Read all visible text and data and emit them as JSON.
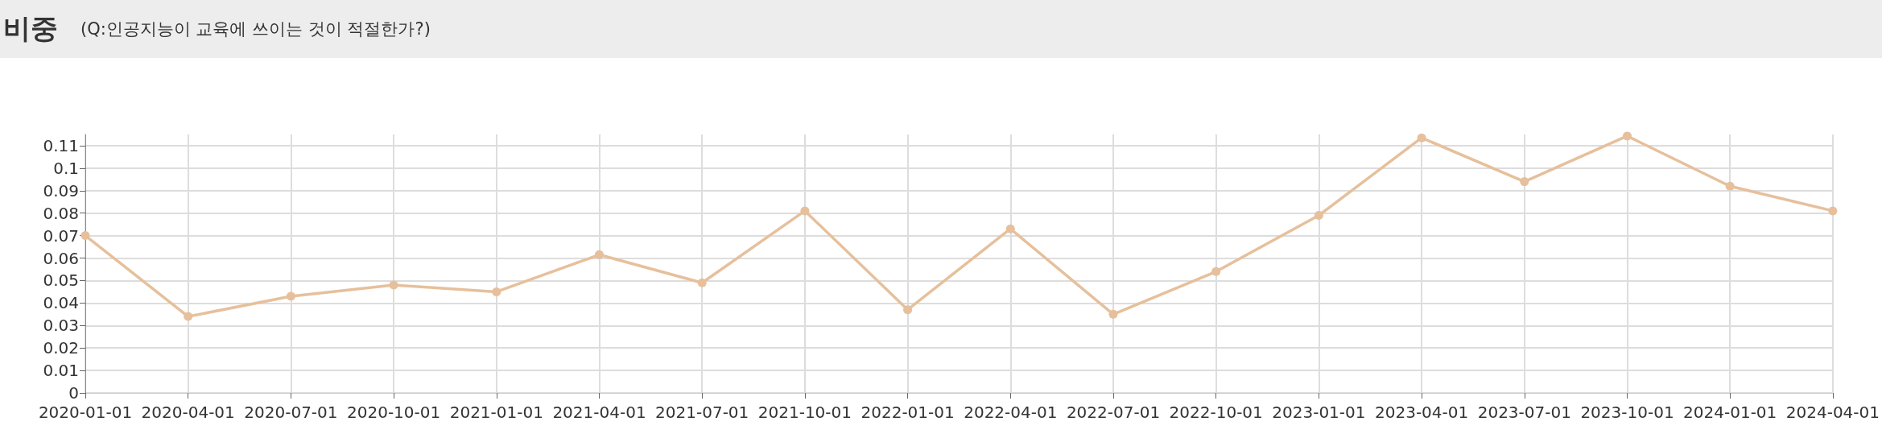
{
  "chart_data": {
    "type": "line",
    "title": "비중",
    "subtitle": "(Q:인공지능이 교육에 쓰이는 것이 적절한가?)",
    "categories": [
      "2020-01-01",
      "2020-04-01",
      "2020-07-01",
      "2020-10-01",
      "2021-01-01",
      "2021-04-01",
      "2021-07-01",
      "2021-10-01",
      "2022-01-01",
      "2022-04-01",
      "2022-07-01",
      "2022-10-01",
      "2023-01-01",
      "2023-04-01",
      "2023-07-01",
      "2023-10-01",
      "2024-01-01",
      "2024-04-01"
    ],
    "series": [
      {
        "color": "#e6c09c",
        "values": [
          0.07,
          0.034,
          0.043,
          0.048,
          0.045,
          0.0615,
          0.049,
          0.081,
          0.037,
          0.073,
          0.035,
          0.054,
          0.079,
          0.1135,
          0.094,
          0.1143,
          0.092,
          0.081
        ]
      }
    ],
    "ylim": [
      0,
      0.115
    ],
    "yticks": [
      0,
      0.01,
      0.02,
      0.03,
      0.04,
      0.05,
      0.06,
      0.07,
      0.08,
      0.09,
      0.1,
      0.11
    ],
    "grid": true,
    "marker": "circle",
    "line_style": "solid"
  }
}
